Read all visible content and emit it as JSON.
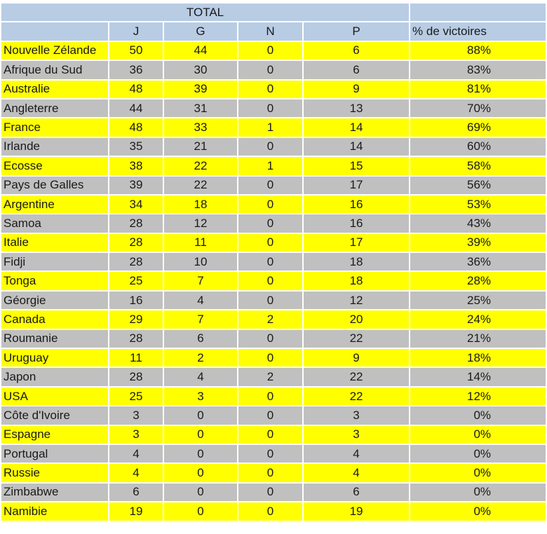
{
  "title": "TOTAL",
  "headers": {
    "country": "",
    "j": "J",
    "g": "G",
    "n": "N",
    "p": "P",
    "pct": "% de victoires"
  },
  "rows": [
    {
      "country": "Nouvelle Zélande",
      "j": "50",
      "g": "44",
      "n": "0",
      "p": "6",
      "pct": "88%"
    },
    {
      "country": "Afrique du Sud",
      "j": "36",
      "g": "30",
      "n": "0",
      "p": "6",
      "pct": "83%"
    },
    {
      "country": "Australie",
      "j": "48",
      "g": "39",
      "n": "0",
      "p": "9",
      "pct": "81%"
    },
    {
      "country": "Angleterre",
      "j": "44",
      "g": "31",
      "n": "0",
      "p": "13",
      "pct": "70%"
    },
    {
      "country": "France",
      "j": "48",
      "g": "33",
      "n": "1",
      "p": "14",
      "pct": "69%"
    },
    {
      "country": "Irlande",
      "j": "35",
      "g": "21",
      "n": "0",
      "p": "14",
      "pct": "60%"
    },
    {
      "country": "Ecosse",
      "j": "38",
      "g": "22",
      "n": "1",
      "p": "15",
      "pct": "58%"
    },
    {
      "country": "Pays de Galles",
      "j": "39",
      "g": "22",
      "n": "0",
      "p": "17",
      "pct": "56%"
    },
    {
      "country": "Argentine",
      "j": "34",
      "g": "18",
      "n": "0",
      "p": "16",
      "pct": "53%"
    },
    {
      "country": "Samoa",
      "j": "28",
      "g": "12",
      "n": "0",
      "p": "16",
      "pct": "43%"
    },
    {
      "country": "Italie",
      "j": "28",
      "g": "11",
      "n": "0",
      "p": "17",
      "pct": "39%"
    },
    {
      "country": "Fidji",
      "j": "28",
      "g": "10",
      "n": "0",
      "p": "18",
      "pct": "36%"
    },
    {
      "country": "Tonga",
      "j": "25",
      "g": "7",
      "n": "0",
      "p": "18",
      "pct": "28%"
    },
    {
      "country": "Géorgie",
      "j": "16",
      "g": "4",
      "n": "0",
      "p": "12",
      "pct": "25%"
    },
    {
      "country": "Canada",
      "j": "29",
      "g": "7",
      "n": "2",
      "p": "20",
      "pct": "24%"
    },
    {
      "country": "Roumanie",
      "j": "28",
      "g": "6",
      "n": "0",
      "p": "22",
      "pct": "21%"
    },
    {
      "country": "Uruguay",
      "j": "11",
      "g": "2",
      "n": "0",
      "p": "9",
      "pct": "18%"
    },
    {
      "country": "Japon",
      "j": "28",
      "g": "4",
      "n": "2",
      "p": "22",
      "pct": "14%"
    },
    {
      "country": "USA",
      "j": "25",
      "g": "3",
      "n": "0",
      "p": "22",
      "pct": "12%"
    },
    {
      "country": "Côte d'Ivoire",
      "j": "3",
      "g": "0",
      "n": "0",
      "p": "3",
      "pct": "0%"
    },
    {
      "country": "Espagne",
      "j": "3",
      "g": "0",
      "n": "0",
      "p": "3",
      "pct": "0%"
    },
    {
      "country": "Portugal",
      "j": "4",
      "g": "0",
      "n": "0",
      "p": "4",
      "pct": "0%"
    },
    {
      "country": "Russie",
      "j": "4",
      "g": "0",
      "n": "0",
      "p": "4",
      "pct": "0%"
    },
    {
      "country": "Zimbabwe",
      "j": "6",
      "g": "0",
      "n": "0",
      "p": "6",
      "pct": "0%"
    },
    {
      "country": "Namibie",
      "j": "19",
      "g": "0",
      "n": "0",
      "p": "19",
      "pct": "0%"
    }
  ],
  "colors": {
    "header": "#b8cce4",
    "row_odd": "#ffff00",
    "row_even": "#c0c0c0"
  }
}
